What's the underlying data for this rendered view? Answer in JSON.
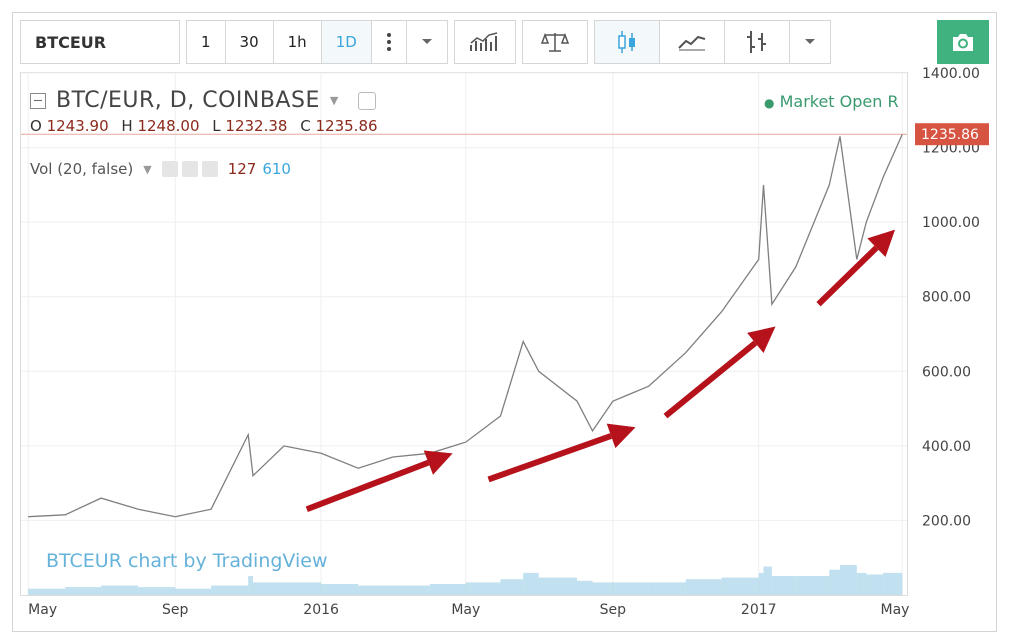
{
  "toolbar": {
    "symbol": "BTCEUR",
    "intervals": [
      "1",
      "30",
      "1h",
      "1D"
    ],
    "active_interval": "1D",
    "more_icon": "vertical-dots-icon",
    "dropdown_icon": "chevron-down-icon",
    "tools": [
      "indicators-icon",
      "compare-scale-icon",
      "candles-icon",
      "line-chart-icon",
      "bars-icon"
    ],
    "camera_icon": "camera-icon"
  },
  "legend": {
    "title": "BTC/EUR, D, COINBASE",
    "ohlc": [
      {
        "label": "O",
        "value": "1243.90"
      },
      {
        "label": "H",
        "value": "1248.00"
      },
      {
        "label": "L",
        "value": "1232.38"
      },
      {
        "label": "C",
        "value": "1235.86"
      }
    ],
    "market_status": "Market Open",
    "market_extra": "R",
    "volume_label": "Vol (20, false)",
    "volume_value_1": "127",
    "volume_value_2": "610"
  },
  "chart_data": {
    "type": "line",
    "title": "BTC/EUR, D, COINBASE",
    "watermark": "BTCEUR chart by TradingView",
    "x_tick_labels": [
      "May",
      "Sep",
      "2016",
      "May",
      "Sep",
      "2017",
      "May"
    ],
    "y_tick_labels": [
      "200.00",
      "400.00",
      "600.00",
      "800.00",
      "1000.00",
      "1200.00",
      "1400.00"
    ],
    "ylim": [
      0,
      1400
    ],
    "last_price_label": "1235.86",
    "colors": {
      "line": "#7f7f7f",
      "last_price": "#d75442",
      "arrows": "#b5121b",
      "volume": "#a7d3ea"
    },
    "x": [
      "2015-05-01",
      "2015-06-01",
      "2015-07-01",
      "2015-08-01",
      "2015-09-01",
      "2015-10-01",
      "2015-11-01",
      "2015-11-05",
      "2015-12-01",
      "2016-01-01",
      "2016-02-01",
      "2016-03-01",
      "2016-04-01",
      "2016-05-01",
      "2016-05-30",
      "2016-06-18",
      "2016-07-01",
      "2016-08-02",
      "2016-08-15",
      "2016-09-01",
      "2016-10-01",
      "2016-11-01",
      "2016-12-01",
      "2017-01-01",
      "2017-01-05",
      "2017-01-12",
      "2017-02-01",
      "2017-03-01",
      "2017-03-10",
      "2017-03-24",
      "2017-04-01",
      "2017-04-15",
      "2017-05-01"
    ],
    "series": [
      {
        "values": [
          210,
          215,
          260,
          230,
          210,
          230,
          430,
          320,
          400,
          380,
          340,
          370,
          380,
          410,
          480,
          680,
          600,
          520,
          440,
          520,
          560,
          650,
          760,
          900,
          1100,
          780,
          880,
          1100,
          1230,
          900,
          1000,
          1120,
          1235
        ]
      }
    ],
    "volume": [
      20,
      25,
      30,
      25,
      20,
      30,
      60,
      40,
      40,
      35,
      30,
      30,
      35,
      40,
      50,
      70,
      55,
      45,
      40,
      40,
      40,
      50,
      55,
      70,
      90,
      60,
      60,
      80,
      95,
      70,
      65,
      70,
      75
    ],
    "annotations": [
      {
        "type": "arrow",
        "from": [
          "2015-12-20",
          230
        ],
        "to": [
          "2016-04-20",
          380
        ]
      },
      {
        "type": "arrow",
        "from": [
          "2016-05-20",
          310
        ],
        "to": [
          "2016-09-20",
          450
        ]
      },
      {
        "type": "arrow",
        "from": [
          "2016-10-15",
          480
        ],
        "to": [
          "2017-01-15",
          720
        ]
      },
      {
        "type": "arrow",
        "from": [
          "2017-02-20",
          780
        ],
        "to": [
          "2017-04-25",
          980
        ]
      }
    ]
  }
}
